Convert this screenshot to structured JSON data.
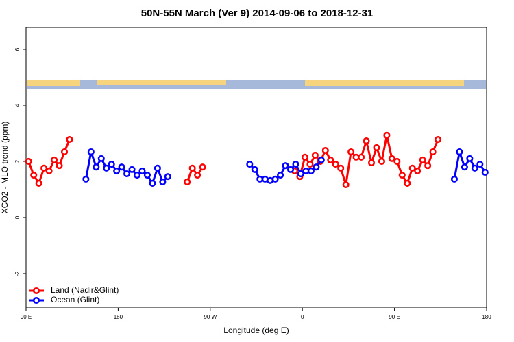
{
  "chart_data": {
    "type": "line",
    "title": "50N-55N March (Ver 9)   2014-09-06 to 2018-12-31",
    "xlabel": "Longitude (deg E)",
    "ylabel": "XCO2 - MLO trend (ppm)",
    "xlim": [
      90,
      540
    ],
    "ylim": [
      -3.22,
      6.78
    ],
    "xticks": [
      {
        "value": 90,
        "label": "90 E"
      },
      180,
      {
        "value": 270,
        "label": "90 W"
      },
      {
        "value": 360,
        "label": "0"
      },
      {
        "value": 450,
        "label": "90 E"
      },
      {
        "value": 540,
        "label": "180"
      }
    ],
    "yticks": [
      -2,
      0,
      2,
      4,
      6
    ],
    "legend": "bottomleft",
    "series": [
      {
        "name": "Land (Nadir&Glint)",
        "color": "#ff0000",
        "x": [
          92.5,
          97.5,
          102.5,
          107.5,
          112.5,
          117.5,
          122.5,
          127.5,
          132.5,
          140,
          247.5,
          252.5,
          257.5,
          262.5,
          300,
          352.5,
          357.5,
          362.5,
          367.5,
          372.5,
          377.5,
          382.5,
          387.5,
          392.5,
          397.5,
          402.5,
          407.5,
          412.5,
          417.5,
          422.5,
          427.5,
          432.5,
          437.5,
          442.5,
          447.5,
          452.5,
          457.5,
          462.5,
          467.5,
          472.5,
          477.5,
          482.5,
          487.5,
          492.5
        ],
        "values": [
          2.0,
          1.51,
          1.22,
          1.76,
          1.66,
          2.05,
          1.85,
          2.34,
          2.78,
          null,
          1.27,
          1.76,
          1.51,
          1.8,
          null,
          1.66,
          1.46,
          2.15,
          1.9,
          2.22,
          2.0,
          2.39,
          2.05,
          1.9,
          1.76,
          1.17,
          2.34,
          2.15,
          2.15,
          2.73,
          1.95,
          2.49,
          2.0,
          2.93,
          2.1,
          2.0,
          1.51,
          1.22,
          1.76,
          1.66,
          2.05,
          1.85,
          2.34,
          2.78
        ]
      },
      {
        "name": "Ocean (Glint)",
        "color": "#0000ff",
        "x": [
          148.5,
          153.5,
          158.5,
          163.5,
          168.5,
          173.5,
          178.5,
          183.5,
          188.5,
          193.5,
          198.5,
          203.5,
          208.5,
          213.5,
          218.5,
          223.5,
          228.5,
          270,
          308.5,
          313.5,
          318.5,
          323.5,
          328.5,
          333.5,
          338.5,
          343.5,
          348.5,
          353.5,
          358.5,
          363.5,
          368.5,
          373.5,
          378.5,
          450,
          508.5,
          513.5,
          518.5,
          523.5,
          528.5,
          533.5,
          538.5
        ],
        "values": [
          1.37,
          2.34,
          1.8,
          2.1,
          1.76,
          1.9,
          1.66,
          1.8,
          1.56,
          1.71,
          1.51,
          1.66,
          1.51,
          1.22,
          1.76,
          1.27,
          1.46,
          null,
          1.9,
          1.71,
          1.37,
          1.37,
          1.32,
          1.37,
          1.51,
          1.85,
          1.71,
          1.9,
          1.56,
          1.66,
          1.66,
          1.8,
          2.05,
          null,
          1.37,
          2.34,
          1.8,
          2.1,
          1.76,
          1.9,
          1.61
        ]
      }
    ]
  }
}
